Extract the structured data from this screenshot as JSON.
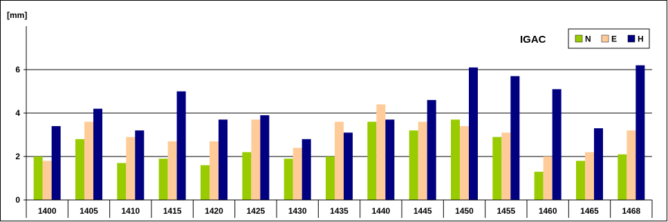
{
  "chart_data": {
    "type": "bar",
    "title": "IGAC",
    "ylabel": "[mm]",
    "xlabel": "",
    "ylim": [
      0,
      8
    ],
    "yticks": [
      0,
      2,
      4,
      6
    ],
    "grid": true,
    "legend_position": "top-right",
    "categories": [
      "1400",
      "1405",
      "1410",
      "1415",
      "1420",
      "1425",
      "1430",
      "1435",
      "1440",
      "1445",
      "1450",
      "1455",
      "1460",
      "1465",
      "1468"
    ],
    "series": [
      {
        "name": "N",
        "color": "#99CC00",
        "values": [
          2.0,
          2.8,
          1.7,
          1.9,
          1.6,
          2.2,
          1.9,
          2.0,
          3.6,
          3.2,
          3.7,
          2.9,
          1.3,
          1.8,
          2.1
        ]
      },
      {
        "name": "E",
        "color": "#FFCC99",
        "values": [
          1.8,
          3.6,
          2.9,
          2.7,
          2.7,
          3.7,
          2.4,
          3.6,
          4.4,
          3.6,
          3.4,
          3.1,
          2.0,
          2.2,
          3.2
        ]
      },
      {
        "name": "H",
        "color": "#000080",
        "values": [
          3.4,
          4.2,
          3.2,
          5.0,
          3.7,
          3.9,
          2.8,
          3.1,
          3.7,
          4.6,
          6.1,
          5.7,
          5.1,
          3.3,
          6.2
        ]
      }
    ]
  }
}
